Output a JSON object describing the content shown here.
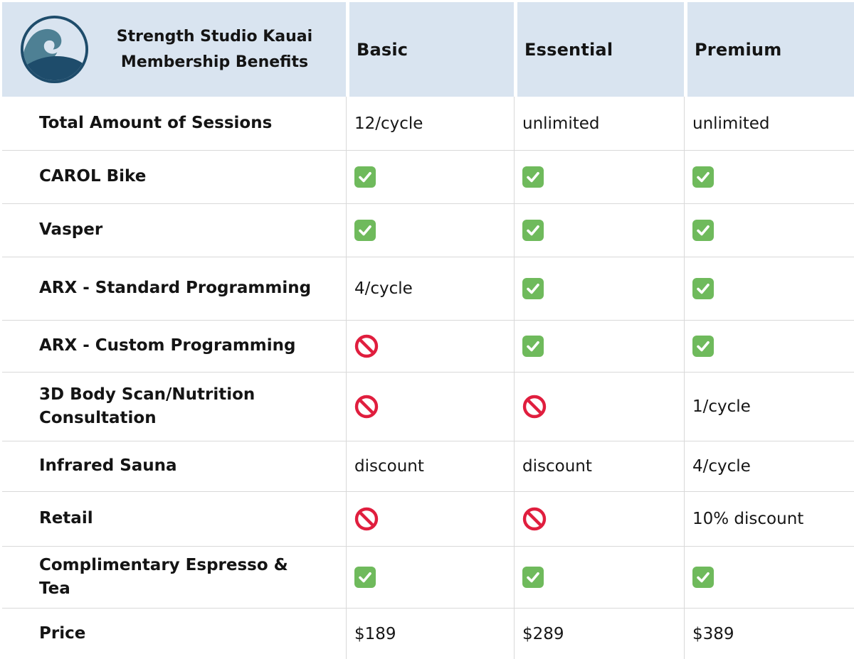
{
  "header": {
    "title": "Strength Studio Kauai\nMembership Benefits",
    "columns": [
      "Basic",
      "Essential",
      "Premium"
    ]
  },
  "icons": {
    "logo": "wave-logo-icon",
    "check": "check-icon",
    "no": "no-entry-icon"
  },
  "colors": {
    "header_bg": "#d9e4f0",
    "grid_line": "#d9d9d9",
    "text": "#141414",
    "check_green": "#6fba5c",
    "no_red": "#e01e3e",
    "logo_navy": "#1e4c6b",
    "logo_teal": "#4e8094",
    "table_bg": "#ffffff"
  },
  "rows": [
    {
      "label": "Total Amount of Sessions",
      "basic": {
        "type": "text",
        "value": "12/cycle"
      },
      "essential": {
        "type": "text",
        "value": "unlimited"
      },
      "premium": {
        "type": "text",
        "value": "unlimited"
      }
    },
    {
      "label": "CAROL Bike",
      "basic": {
        "type": "check"
      },
      "essential": {
        "type": "check"
      },
      "premium": {
        "type": "check"
      }
    },
    {
      "label": "Vasper",
      "basic": {
        "type": "check"
      },
      "essential": {
        "type": "check"
      },
      "premium": {
        "type": "check"
      }
    },
    {
      "label": "ARX - Standard Programming",
      "basic": {
        "type": "text",
        "value": "4/cycle"
      },
      "essential": {
        "type": "check"
      },
      "premium": {
        "type": "check"
      }
    },
    {
      "label": "ARX - Custom Programming",
      "basic": {
        "type": "no"
      },
      "essential": {
        "type": "check"
      },
      "premium": {
        "type": "check"
      }
    },
    {
      "label": "3D Body Scan/Nutrition\nConsultation",
      "basic": {
        "type": "no"
      },
      "essential": {
        "type": "no"
      },
      "premium": {
        "type": "text",
        "value": "1/cycle"
      }
    },
    {
      "label": "Infrared Sauna",
      "basic": {
        "type": "text",
        "value": "discount"
      },
      "essential": {
        "type": "text",
        "value": "discount"
      },
      "premium": {
        "type": "text",
        "value": "4/cycle"
      }
    },
    {
      "label": "Retail",
      "basic": {
        "type": "no"
      },
      "essential": {
        "type": "no"
      },
      "premium": {
        "type": "text",
        "value": "10% discount"
      }
    },
    {
      "label": "Complimentary Espresso &\nTea",
      "basic": {
        "type": "check"
      },
      "essential": {
        "type": "check"
      },
      "premium": {
        "type": "check"
      }
    },
    {
      "label": "Price",
      "basic": {
        "type": "text",
        "value": "$189"
      },
      "essential": {
        "type": "text",
        "value": "$289"
      },
      "premium": {
        "type": "text",
        "value": "$389"
      }
    }
  ]
}
